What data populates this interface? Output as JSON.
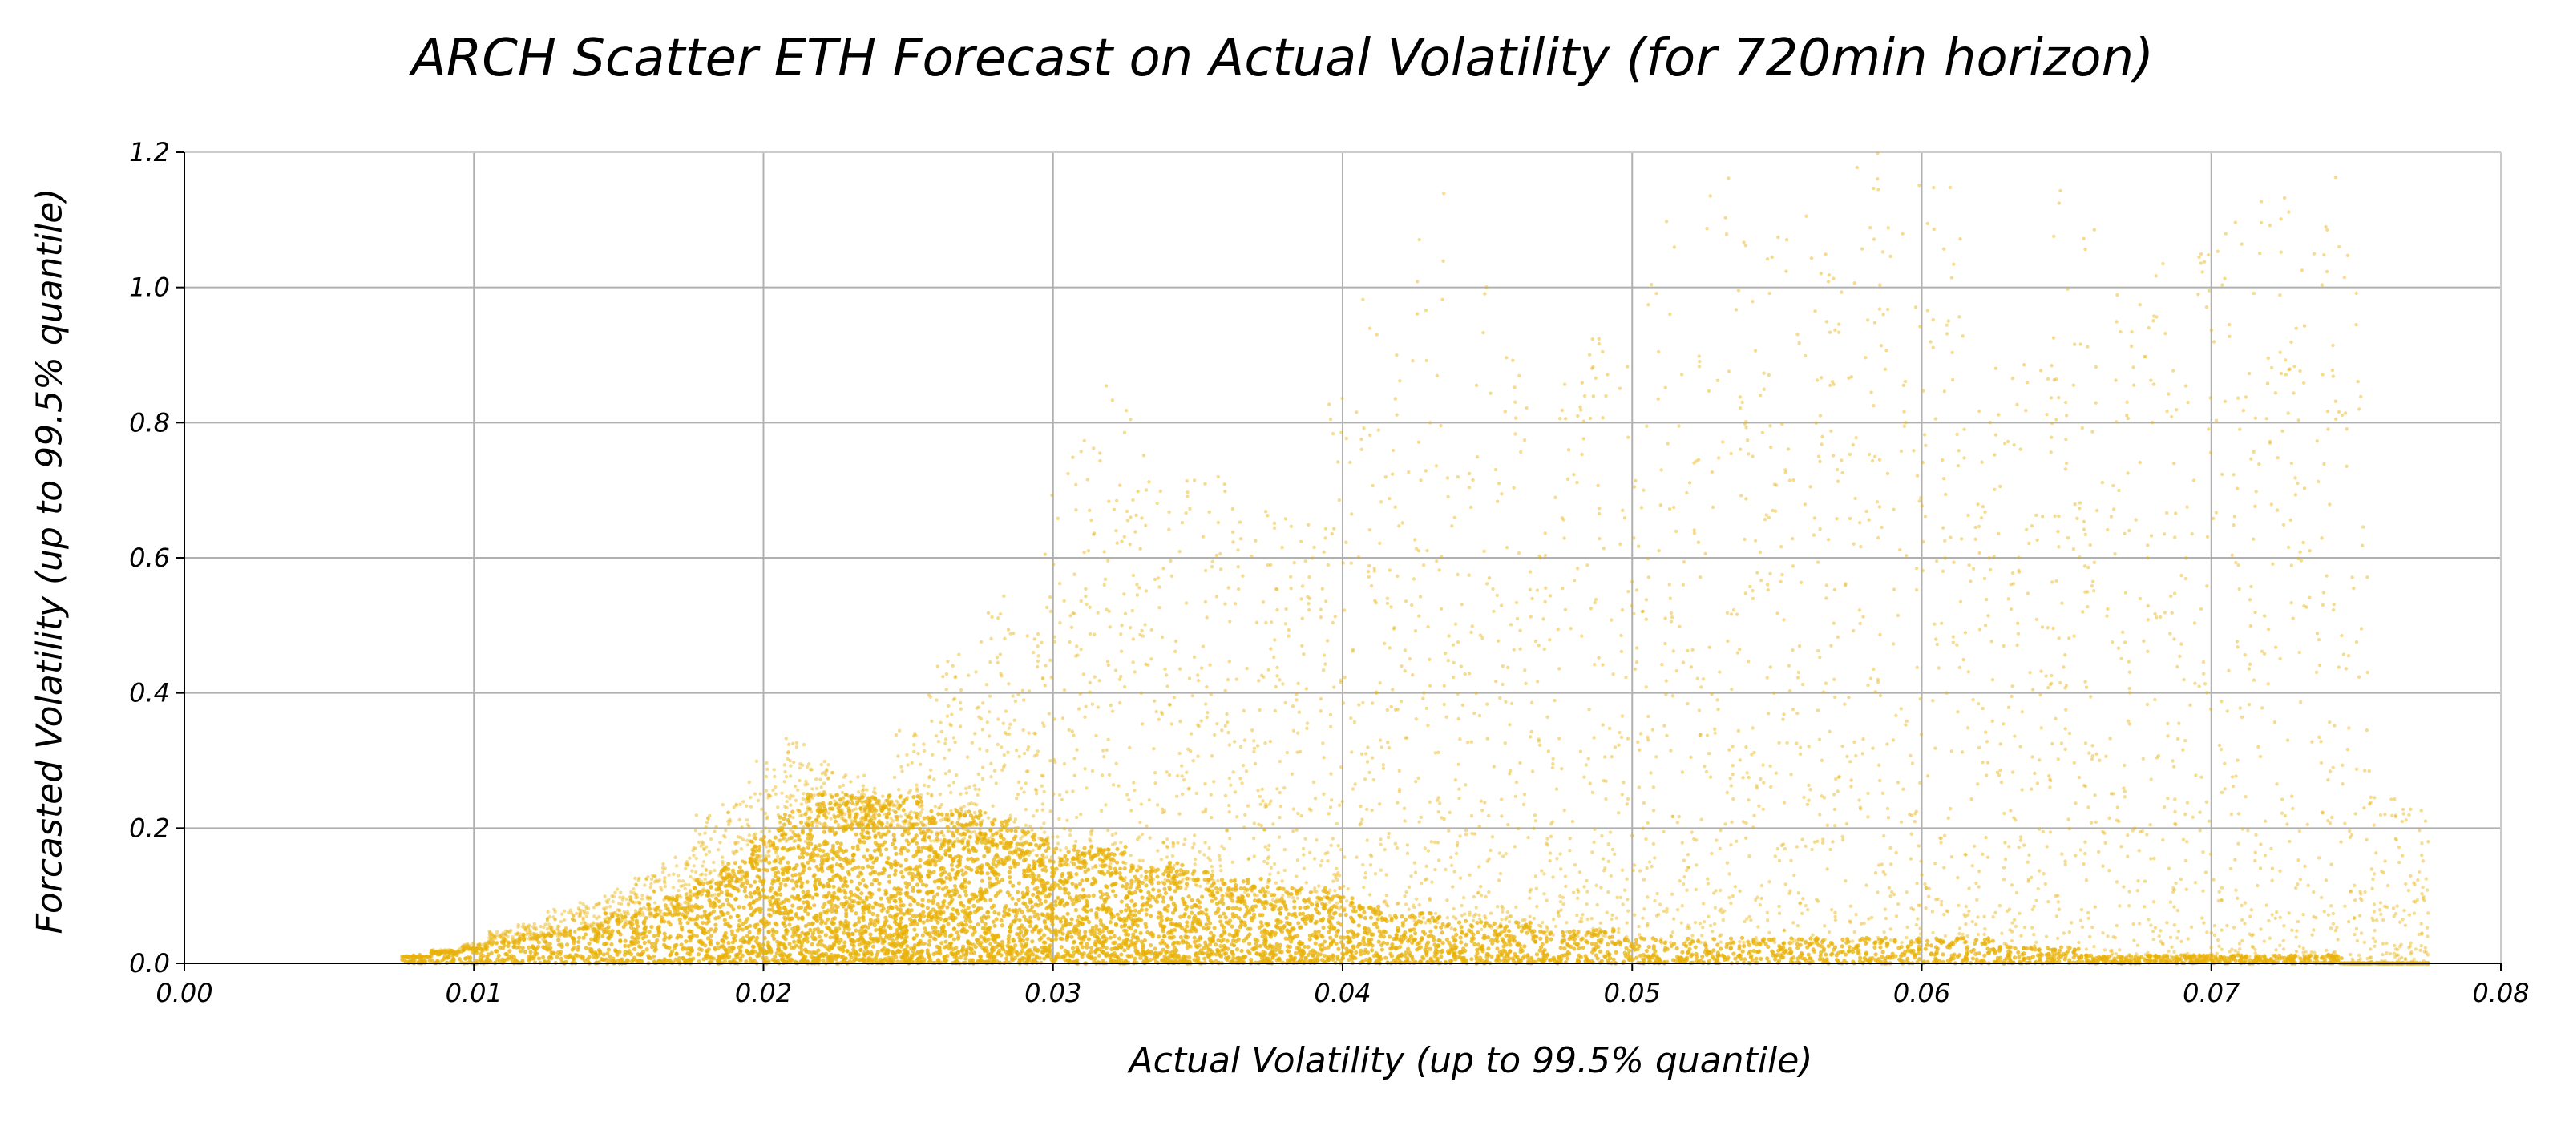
{
  "chart_data": {
    "type": "scatter",
    "title": "ARCH Scatter ETH Forecast on Actual Volatility (for 720min horizon)",
    "xlabel": "Actual Volatility (up to 99.5% quantile)",
    "ylabel": "Forcasted Volatility (up to 99.5% quantile)",
    "xlim": [
      0.0,
      0.08
    ],
    "ylim": [
      0.0,
      1.2
    ],
    "xticks": [
      "0.00",
      "0.01",
      "0.02",
      "0.03",
      "0.04",
      "0.05",
      "0.06",
      "0.07",
      "0.08"
    ],
    "yticks": [
      "0.0",
      "0.2",
      "0.4",
      "0.6",
      "0.8",
      "1.0",
      "1.2"
    ],
    "grid": true,
    "legend": "none",
    "point_color": "#e8b10a",
    "series": [
      {
        "points_description": "dense cloud of points; approximate density summarized as representative points",
        "x": [
          0.008,
          0.009,
          0.01,
          0.011,
          0.012,
          0.013,
          0.014,
          0.015,
          0.016,
          0.017,
          0.018,
          0.019,
          0.02,
          0.021,
          0.022,
          0.023,
          0.024,
          0.025,
          0.026,
          0.027,
          0.028,
          0.029,
          0.03,
          0.031,
          0.032,
          0.033,
          0.034,
          0.035,
          0.036,
          0.037,
          0.038,
          0.039,
          0.04,
          0.041,
          0.042,
          0.043,
          0.044,
          0.045,
          0.046,
          0.047,
          0.048,
          0.049,
          0.05,
          0.051,
          0.052,
          0.053,
          0.054,
          0.055,
          0.056,
          0.057,
          0.058,
          0.059,
          0.06,
          0.061,
          0.062,
          0.063,
          0.064,
          0.065,
          0.066,
          0.067,
          0.068,
          0.069,
          0.07,
          0.071,
          0.072,
          0.073,
          0.074,
          0.075,
          0.076,
          0.077
        ],
        "y_max": [
          0.01,
          0.02,
          0.03,
          0.05,
          0.06,
          0.08,
          0.09,
          0.11,
          0.13,
          0.16,
          0.22,
          0.24,
          0.3,
          0.34,
          0.3,
          0.28,
          0.26,
          0.35,
          0.45,
          0.46,
          0.55,
          0.55,
          0.7,
          0.8,
          0.87,
          0.86,
          0.7,
          0.72,
          0.75,
          0.68,
          0.66,
          0.65,
          0.85,
          1.05,
          0.9,
          1.15,
          0.75,
          1.02,
          0.95,
          0.7,
          0.9,
          0.95,
          0.9,
          1.12,
          0.95,
          1.18,
          1.18,
          1.1,
          1.15,
          1.05,
          1.2,
          1.2,
          1.2,
          1.15,
          0.85,
          0.9,
          1.05,
          1.18,
          1.1,
          1.0,
          1.05,
          0.95,
          1.1,
          1.12,
          1.18,
          1.2,
          1.18,
          1.05,
          0.25,
          0.23
        ],
        "y_dense": [
          0.01,
          0.015,
          0.02,
          0.03,
          0.035,
          0.04,
          0.05,
          0.06,
          0.07,
          0.08,
          0.1,
          0.12,
          0.15,
          0.18,
          0.2,
          0.2,
          0.2,
          0.2,
          0.18,
          0.18,
          0.17,
          0.16,
          0.15,
          0.14,
          0.14,
          0.12,
          0.12,
          0.11,
          0.1,
          0.1,
          0.09,
          0.09,
          0.08,
          0.07,
          0.06,
          0.06,
          0.05,
          0.05,
          0.05,
          0.04,
          0.04,
          0.04,
          0.03,
          0.03,
          0.03,
          0.03,
          0.03,
          0.03,
          0.03,
          0.03,
          0.03,
          0.03,
          0.03,
          0.03,
          0.03,
          0.02,
          0.02,
          0.02,
          0.01,
          0.01,
          0.01,
          0.01,
          0.01,
          0.01,
          0.01,
          0.01,
          0.01,
          0.0,
          0.0,
          0.0
        ]
      }
    ]
  }
}
